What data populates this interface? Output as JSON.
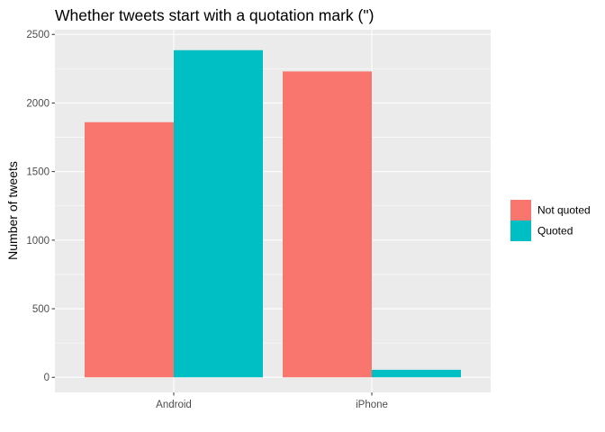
{
  "chart_data": {
    "type": "bar",
    "title": "Whether tweets start with a quotation mark (\")",
    "xlabel": "",
    "ylabel": "Number of tweets",
    "categories": [
      "Android",
      "iPhone"
    ],
    "series": [
      {
        "name": "Not quoted",
        "color": "#F8766D",
        "values": [
          1860,
          2230
        ]
      },
      {
        "name": "Quoted",
        "color": "#00BFC4",
        "values": [
          2385,
          55
        ]
      }
    ],
    "ylim": [
      -110,
      2500
    ],
    "yticks": [
      0,
      500,
      1000,
      1500,
      2000,
      2500
    ],
    "ytick_labels": [
      "0",
      "500",
      "1000",
      "1500",
      "2000",
      "2500"
    ],
    "grid": true,
    "legend_position": "right",
    "panel_background": "#EBEBEB",
    "grid_color": "#FFFFFF"
  }
}
